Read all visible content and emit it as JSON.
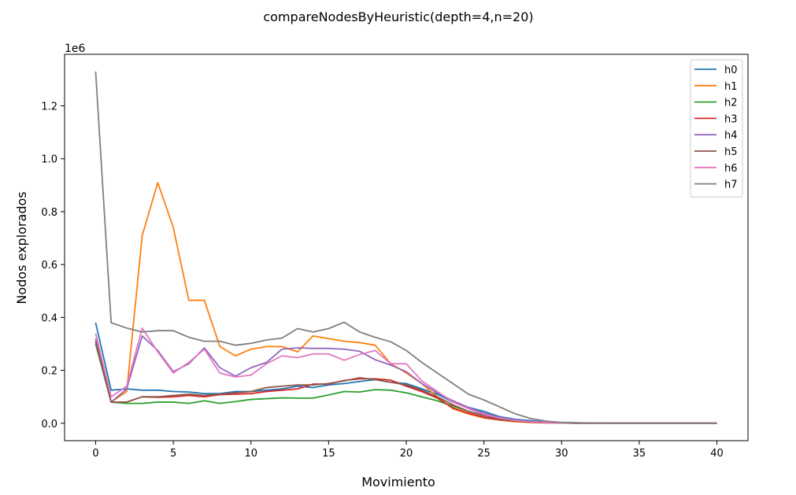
{
  "chart_data": {
    "type": "line",
    "title": "compareNodesByHeuristic(depth=4,n=20)",
    "xlabel": "Movimiento",
    "ylabel": "Nodos explorados",
    "y_offset_text": "1e6",
    "xlim": [
      -2,
      42
    ],
    "ylim": [
      -0.066,
      1.395
    ],
    "x_ticks": [
      0,
      5,
      10,
      15,
      20,
      25,
      30,
      35,
      40
    ],
    "x_tick_labels": [
      "0",
      "5",
      "10",
      "15",
      "20",
      "25",
      "30",
      "35",
      "40"
    ],
    "y_ticks": [
      0.0,
      0.2,
      0.4,
      0.6,
      0.8,
      1.0,
      1.2
    ],
    "y_tick_labels": [
      "0.0",
      "0.2",
      "0.4",
      "0.6",
      "0.8",
      "1.0",
      "1.2"
    ],
    "y_scale_note": "values in units of 1e6",
    "grid": false,
    "legend_position": "top-right",
    "x": [
      0,
      1,
      2,
      3,
      4,
      5,
      6,
      7,
      8,
      9,
      10,
      11,
      12,
      13,
      14,
      15,
      16,
      17,
      18,
      19,
      20,
      21,
      22,
      23,
      24,
      25,
      26,
      27,
      28,
      29,
      30,
      31,
      32,
      33,
      34,
      35,
      36,
      37,
      38,
      39,
      40
    ],
    "series": [
      {
        "name": "h0",
        "color": "#1f77b4",
        "values": [
          0.38,
          0.125,
          0.13,
          0.125,
          0.125,
          0.12,
          0.118,
          0.112,
          0.112,
          0.12,
          0.12,
          0.125,
          0.13,
          0.14,
          0.135,
          0.145,
          0.15,
          0.158,
          0.165,
          0.155,
          0.15,
          0.13,
          0.11,
          0.08,
          0.06,
          0.045,
          0.025,
          0.015,
          0.01,
          0.005,
          0.003,
          0.002,
          0.001,
          0.001,
          0,
          0,
          0,
          0,
          0,
          0,
          0
        ]
      },
      {
        "name": "h1",
        "color": "#ff7f0e",
        "values": [
          0.31,
          0.08,
          0.12,
          0.71,
          0.91,
          0.74,
          0.465,
          0.465,
          0.29,
          0.255,
          0.28,
          0.29,
          0.29,
          0.27,
          0.33,
          0.32,
          0.31,
          0.305,
          0.295,
          0.225,
          0.19,
          0.15,
          0.1,
          0.055,
          0.035,
          0.02,
          0.012,
          0.006,
          0.003,
          0.001,
          0.001,
          0,
          0,
          0,
          0,
          0,
          0,
          0,
          0,
          0,
          0
        ]
      },
      {
        "name": "h2",
        "color": "#2ca02c",
        "values": [
          0.3,
          0.08,
          0.075,
          0.075,
          0.08,
          0.08,
          0.075,
          0.085,
          0.075,
          0.082,
          0.09,
          0.093,
          0.096,
          0.095,
          0.095,
          0.107,
          0.12,
          0.118,
          0.127,
          0.125,
          0.115,
          0.1,
          0.085,
          0.065,
          0.045,
          0.03,
          0.018,
          0.01,
          0.006,
          0.003,
          0.002,
          0.001,
          0,
          0,
          0,
          0,
          0,
          0,
          0,
          0,
          0
        ]
      },
      {
        "name": "h3",
        "color": "#d62728",
        "values": [
          0.31,
          0.08,
          0.08,
          0.1,
          0.098,
          0.1,
          0.105,
          0.1,
          0.108,
          0.11,
          0.112,
          0.12,
          0.125,
          0.13,
          0.148,
          0.148,
          0.162,
          0.168,
          0.168,
          0.163,
          0.14,
          0.12,
          0.095,
          0.058,
          0.038,
          0.022,
          0.013,
          0.008,
          0.004,
          0.002,
          0.001,
          0,
          0,
          0,
          0,
          0,
          0,
          0,
          0,
          0,
          0
        ]
      },
      {
        "name": "h4",
        "color": "#9467bd",
        "values": [
          0.32,
          0.08,
          0.13,
          0.33,
          0.275,
          0.195,
          0.225,
          0.285,
          0.21,
          0.178,
          0.21,
          0.23,
          0.28,
          0.285,
          0.283,
          0.283,
          0.28,
          0.272,
          0.24,
          0.22,
          0.195,
          0.15,
          0.115,
          0.085,
          0.06,
          0.038,
          0.022,
          0.012,
          0.006,
          0.003,
          0.001,
          0.001,
          0,
          0,
          0,
          0,
          0,
          0,
          0,
          0,
          0
        ]
      },
      {
        "name": "h5",
        "color": "#8c564b",
        "values": [
          0.31,
          0.08,
          0.08,
          0.1,
          0.1,
          0.105,
          0.11,
          0.105,
          0.11,
          0.115,
          0.12,
          0.135,
          0.14,
          0.145,
          0.145,
          0.15,
          0.16,
          0.172,
          0.165,
          0.155,
          0.145,
          0.125,
          0.1,
          0.07,
          0.045,
          0.028,
          0.015,
          0.009,
          0.005,
          0.002,
          0.001,
          0,
          0,
          0,
          0,
          0,
          0,
          0,
          0,
          0,
          0
        ]
      },
      {
        "name": "h6",
        "color": "#e377c2",
        "values": [
          0.34,
          0.1,
          0.14,
          0.36,
          0.27,
          0.19,
          0.23,
          0.28,
          0.19,
          0.175,
          0.182,
          0.225,
          0.255,
          0.248,
          0.262,
          0.262,
          0.238,
          0.26,
          0.275,
          0.225,
          0.225,
          0.16,
          0.12,
          0.08,
          0.055,
          0.033,
          0.02,
          0.011,
          0.006,
          0.003,
          0.001,
          0.001,
          0,
          0,
          0,
          0,
          0,
          0,
          0,
          0,
          0
        ]
      },
      {
        "name": "h7",
        "color": "#7f7f7f",
        "values": [
          1.33,
          0.38,
          0.36,
          0.345,
          0.35,
          0.35,
          0.325,
          0.31,
          0.31,
          0.295,
          0.302,
          0.315,
          0.322,
          0.358,
          0.345,
          0.358,
          0.382,
          0.345,
          0.325,
          0.308,
          0.275,
          0.23,
          0.19,
          0.15,
          0.11,
          0.088,
          0.062,
          0.036,
          0.018,
          0.008,
          0.003,
          0.001,
          0.001,
          0,
          0,
          0,
          0,
          0,
          0,
          0,
          0
        ]
      }
    ]
  }
}
